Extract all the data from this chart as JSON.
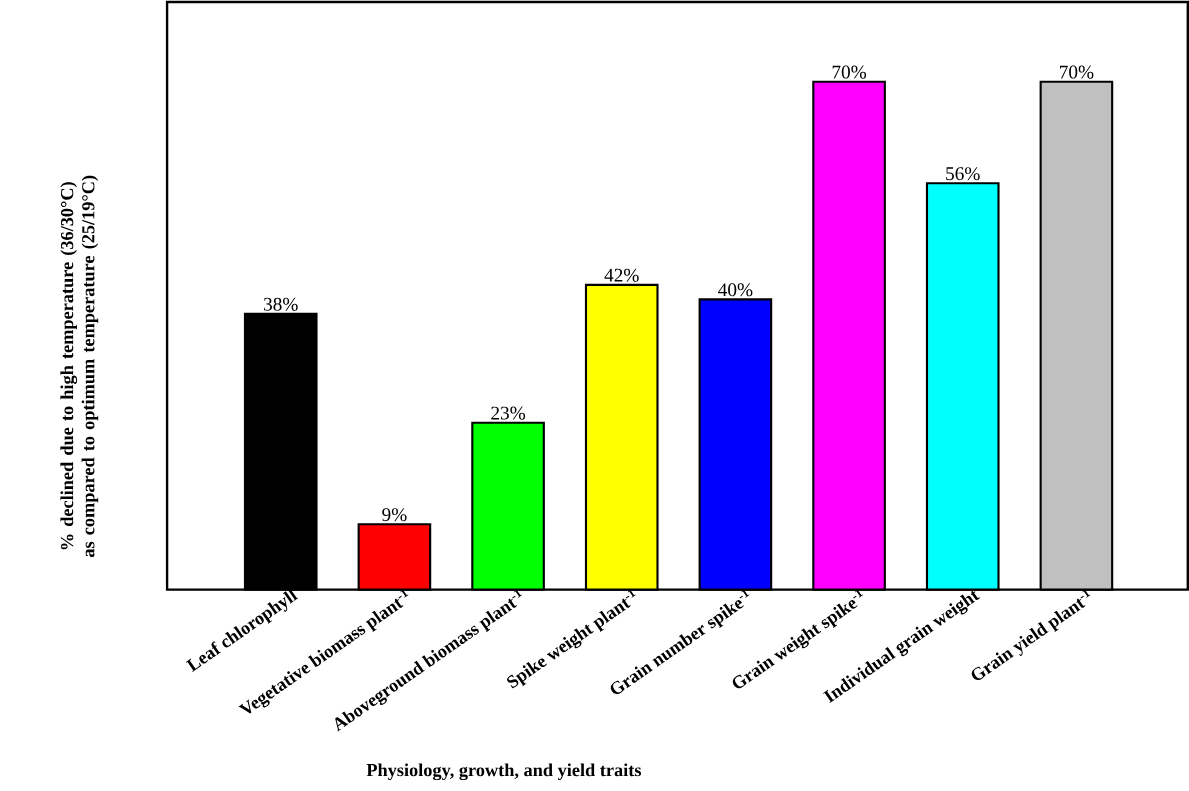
{
  "chart_data": {
    "type": "bar",
    "xlabel": "Physiology, growth, and yield traits",
    "ylabel": "% declined due to high temperature (36/30°C) as compared to optimum temperature (25/19°C)",
    "categories": [
      "Leaf chlorophyll",
      "Vegetative biomass plant$^{-1}$",
      "Aboveground biomass plant$^{-1}$",
      "Spike weight plant$^{-1}$",
      "Grain number spike$^{-1}$",
      "Grain weight spike$^{-1}$",
      "Individual grain weight",
      "Grain yield plant$^{-1}$"
    ],
    "values": [
      38,
      9,
      23,
      42,
      40,
      70,
      56,
      70
    ],
    "value_labels": [
      "38%",
      "9%",
      "23%",
      "42%",
      "40%",
      "70%",
      "56%",
      "70%"
    ],
    "colors": [
      "#000000",
      "#ff0000",
      "#00ff00",
      "#ffff00",
      "#0000ff",
      "#ff00ff",
      "#00ffff",
      "#c0c0c0"
    ],
    "ylim": [
      0,
      81
    ]
  }
}
